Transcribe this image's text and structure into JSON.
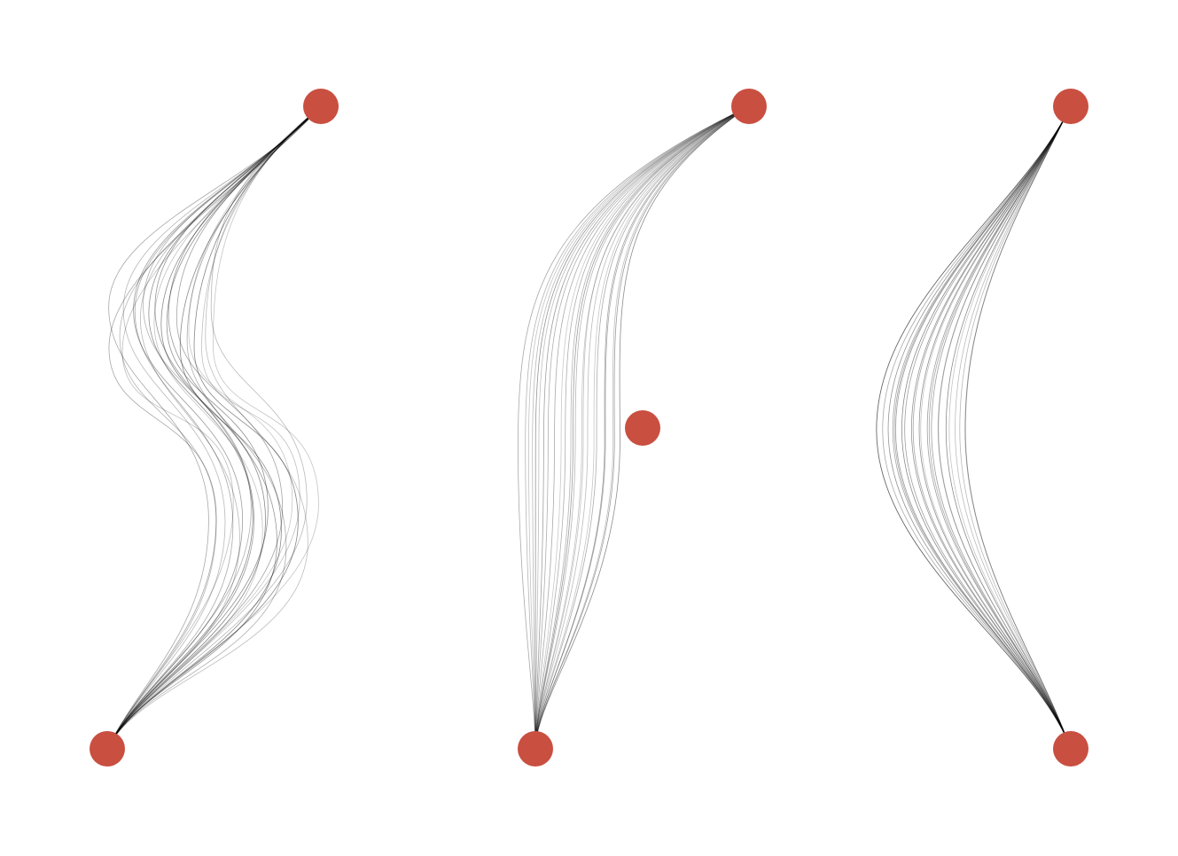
{
  "diagram": {
    "type": "network-edge-bundles",
    "colors": {
      "node": "#c94f40",
      "edge": "#000000",
      "background": "#ffffff"
    },
    "panels": [
      {
        "name": "panel-left",
        "edge_count": 24,
        "edge_style": "s-curve",
        "nodes": [
          "top-node",
          "bottom-node"
        ],
        "edges_between": [
          "top-node",
          "bottom-node"
        ]
      },
      {
        "name": "panel-middle",
        "edge_count": 24,
        "edge_style": "arc",
        "nodes": [
          "top-node",
          "bottom-node",
          "isolated-node"
        ],
        "edges_between": [
          "top-node",
          "bottom-node"
        ]
      },
      {
        "name": "panel-right",
        "edge_count": 24,
        "edge_style": "arc",
        "nodes": [
          "top-node",
          "bottom-node"
        ],
        "edges_between": [
          "top-node",
          "bottom-node"
        ]
      }
    ]
  }
}
